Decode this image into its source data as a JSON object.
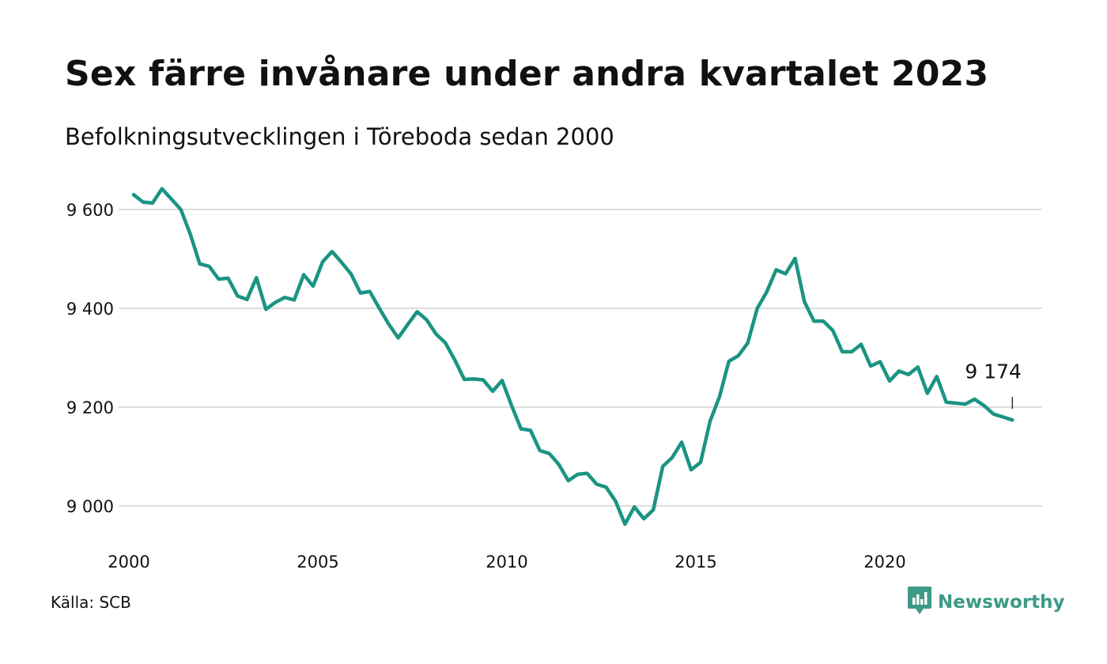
{
  "header": {
    "title": "Sex färre invånare under andra kvartalet 2023",
    "subtitle": "Befolkningsutvecklingen i Töreboda sedan 2000"
  },
  "footer": {
    "source": "Källa: SCB",
    "brand": "Newsworthy"
  },
  "colors": {
    "line": "#1a9483",
    "grid": "#dddddd",
    "brand": "#3d9a87"
  },
  "chart_data": {
    "type": "line",
    "title": "Sex färre invånare under andra kvartalet 2023",
    "subtitle": "Befolkningsutvecklingen i Töreboda sedan 2000",
    "xlabel": "",
    "ylabel": "",
    "xlim": [
      2000,
      2024
    ],
    "ylim": [
      8940,
      9650
    ],
    "x_ticks": [
      2000,
      2005,
      2010,
      2015,
      2020
    ],
    "x_tick_labels": [
      "2000",
      "2005",
      "2010",
      "2015",
      "2020"
    ],
    "y_ticks": [
      9000,
      9200,
      9400,
      9600
    ],
    "y_tick_labels": [
      "9 000",
      "9 200",
      "9 400",
      "9 600"
    ],
    "grid": "horizontal",
    "legend": "none",
    "annotation": {
      "text": "9 174",
      "x": 2023.375,
      "y": 9174
    },
    "series": [
      {
        "x": [
          2000.125,
          2000.375,
          2000.625,
          2000.875,
          2001.125,
          2001.375,
          2001.625,
          2001.875,
          2002.125,
          2002.375,
          2002.625,
          2002.875,
          2003.125,
          2003.375,
          2003.625,
          2003.875,
          2004.125,
          2004.375,
          2004.625,
          2004.875,
          2005.125,
          2005.375,
          2005.625,
          2005.875,
          2006.125,
          2006.375,
          2006.625,
          2006.875,
          2007.125,
          2007.375,
          2007.625,
          2007.875,
          2008.125,
          2008.375,
          2008.625,
          2008.875,
          2009.125,
          2009.375,
          2009.625,
          2009.875,
          2010.125,
          2010.375,
          2010.625,
          2010.875,
          2011.125,
          2011.375,
          2011.625,
          2011.875,
          2012.125,
          2012.375,
          2012.625,
          2012.875,
          2013.125,
          2013.375,
          2013.625,
          2013.875,
          2014.125,
          2014.375,
          2014.625,
          2014.875,
          2015.125,
          2015.375,
          2015.625,
          2015.875,
          2016.125,
          2016.375,
          2016.625,
          2016.875,
          2017.125,
          2017.375,
          2017.625,
          2017.875,
          2018.125,
          2018.375,
          2018.625,
          2018.875,
          2019.125,
          2019.375,
          2019.625,
          2019.875,
          2020.125,
          2020.375,
          2020.625,
          2020.875,
          2021.125,
          2021.375,
          2021.625,
          2021.875,
          2022.125,
          2022.375,
          2022.625,
          2022.875,
          2023.125,
          2023.375
        ],
        "y": [
          9630,
          9615,
          9613,
          9642,
          9621,
          9600,
          9550,
          9490,
          9485,
          9459,
          9461,
          9425,
          9418,
          9462,
          9398,
          9412,
          9422,
          9417,
          9468,
          9445,
          9494,
          9515,
          9493,
          9470,
          9431,
          9434,
          9400,
          9368,
          9340,
          9367,
          9393,
          9377,
          9348,
          9330,
          9295,
          9256,
          9257,
          9255,
          9232,
          9254,
          9203,
          9156,
          9153,
          9112,
          9106,
          9084,
          9051,
          9064,
          9066,
          9044,
          9038,
          9010,
          8963,
          8998,
          8974,
          8992,
          9080,
          9098,
          9129,
          9073,
          9088,
          9171,
          9221,
          9293,
          9304,
          9330,
          9400,
          9433,
          9478,
          9470,
          9501,
          9413,
          9374,
          9374,
          9355,
          9312,
          9312,
          9327,
          9283,
          9292,
          9253,
          9273,
          9266,
          9281,
          9228,
          9262,
          9210,
          9208,
          9206,
          9216,
          9203,
          9186,
          9180,
          9174
        ]
      }
    ]
  }
}
